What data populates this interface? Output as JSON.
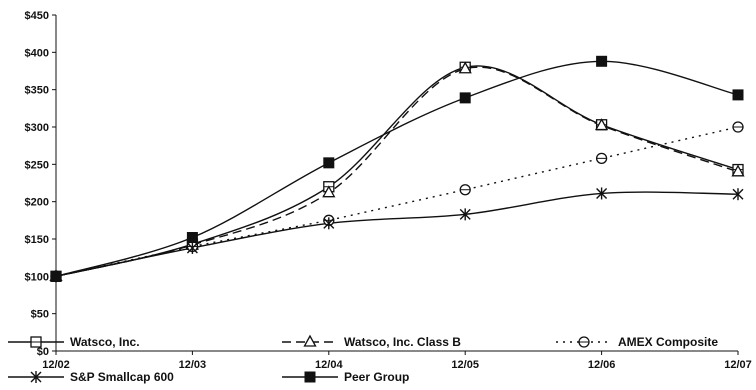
{
  "chart_data": {
    "type": "line",
    "title": "",
    "xlabel": "",
    "ylabel": "",
    "categories": [
      "12/02",
      "12/03",
      "12/04",
      "12/05",
      "12/06",
      "12/07"
    ],
    "y_ticks": [
      "$0",
      "$50",
      "$100",
      "$150",
      "$200",
      "$250",
      "$300",
      "$350",
      "$400",
      "$450"
    ],
    "ylim": [
      0,
      450
    ],
    "grid": false,
    "legend_position": "bottom",
    "series": [
      {
        "name": "Watsco, Inc.",
        "values": [
          100,
          143,
          220,
          380,
          303,
          243
        ],
        "marker": "square-open",
        "dash": "solid",
        "smooth": true
      },
      {
        "name": "Watsco, Inc. Class B",
        "values": [
          100,
          142,
          212,
          378,
          302,
          240
        ],
        "marker": "triangle-open",
        "dash": "dashed",
        "smooth": true
      },
      {
        "name": "AMEX Composite",
        "values": [
          100,
          140,
          175,
          216,
          258,
          300
        ],
        "marker": "circle-open",
        "dash": "dotted",
        "smooth": false
      },
      {
        "name": "S&P Smallcap 600",
        "values": [
          100,
          138,
          171,
          183,
          211,
          210
        ],
        "marker": "asterisk",
        "dash": "solid",
        "smooth": true
      },
      {
        "name": "Peer Group",
        "values": [
          100,
          152,
          252,
          339,
          388,
          343
        ],
        "marker": "square-filled",
        "dash": "solid",
        "smooth": true
      }
    ]
  }
}
